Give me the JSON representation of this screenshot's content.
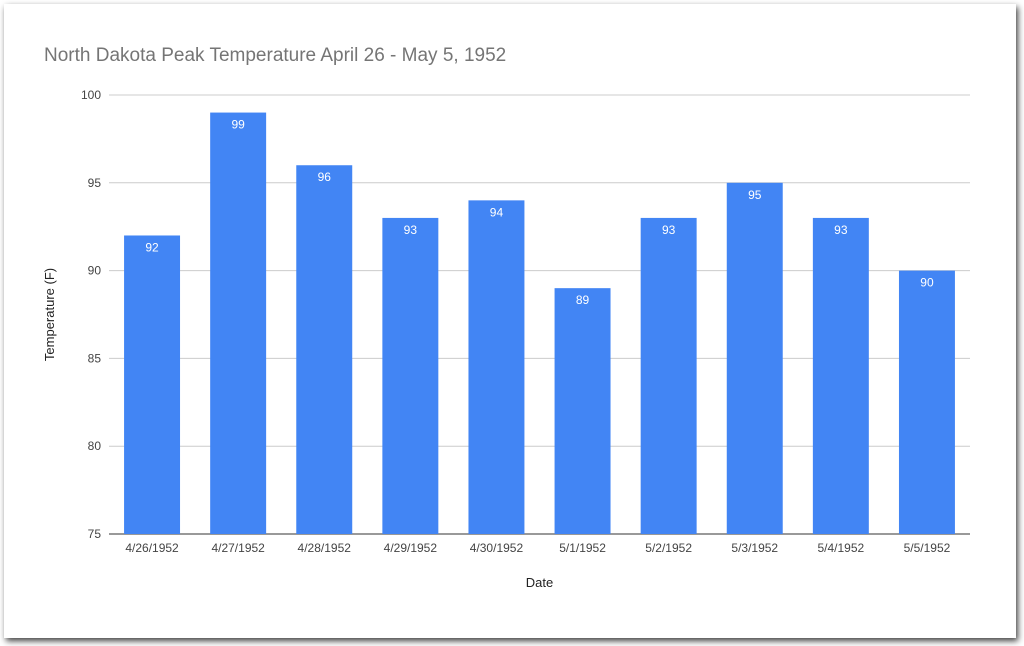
{
  "chart_data": {
    "type": "bar",
    "title": "North Dakota Peak Temperature April 26 - May 5, 1952",
    "xlabel": "Date",
    "ylabel": "Temperature (F)",
    "categories": [
      "4/26/1952",
      "4/27/1952",
      "4/28/1952",
      "4/29/1952",
      "4/30/1952",
      "5/1/1952",
      "5/2/1952",
      "5/3/1952",
      "5/4/1952",
      "5/5/1952"
    ],
    "values": [
      92,
      99,
      96,
      93,
      94,
      89,
      93,
      95,
      93,
      90
    ],
    "ylim": [
      75,
      100
    ],
    "yticks": [
      75,
      80,
      85,
      90,
      95,
      100
    ],
    "grid": true,
    "legend": "none",
    "data_labels": true,
    "colors": {
      "bar": "#4285f4",
      "grid": "#cccccc",
      "title": "#757575"
    }
  }
}
